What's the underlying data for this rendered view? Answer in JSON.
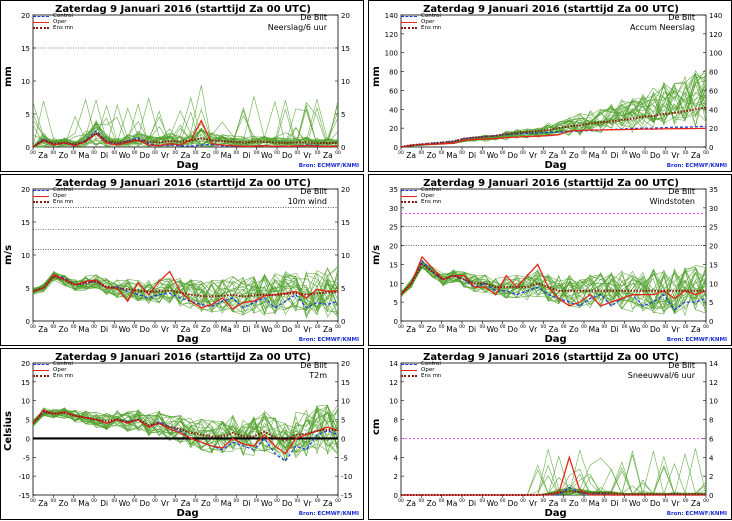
{
  "title": "Zaterdag   9 Januari   2016   (starttijd  Za 00 UTC)",
  "location": "De Bilt",
  "source": "Bron: ECMWF/KNMI",
  "xlabel": "Dag",
  "day_labels": [
    "Za",
    "Zo",
    "Ma",
    "Di",
    "Wo",
    "Do",
    "Vr",
    "Za",
    "Zo",
    "Ma",
    "Di",
    "Wo",
    "Do",
    "Vr",
    "Za"
  ],
  "legend": {
    "control": "Control",
    "oper": "Oper",
    "ensmn": "Ens mn"
  },
  "colors": {
    "members": "#4fa02a",
    "control": "#1f3fe0",
    "oper": "#e8231a",
    "ensmn": "#8b1a10",
    "frame": "#000000",
    "threshold_pink": "#ff33ff"
  },
  "chart_data": [
    {
      "id": "neerslag",
      "type": "line",
      "variable": "Neerslag/6 uur",
      "ylabel": "mm",
      "ylim": [
        0,
        20
      ],
      "yticks": [
        0,
        5,
        10,
        15,
        20
      ],
      "ref_lines": [
        15
      ],
      "ref_color": "black",
      "control": [
        0,
        1.2,
        0.4,
        0.6,
        0.3,
        1.0,
        2.5,
        0.8,
        0.4,
        0.9,
        1.4,
        0.5,
        0.2,
        0.3,
        0.2,
        0.1,
        0.3,
        0.4,
        0.2,
        0.1,
        0.1,
        0.1,
        0.2,
        0.1,
        0.1,
        0.1,
        0.3,
        0.2,
        0.1,
        0.1
      ],
      "oper": [
        0,
        1.0,
        0.3,
        0.6,
        0.2,
        0.8,
        2.0,
        0.6,
        0.3,
        0.7,
        1.0,
        0.3,
        0.2,
        0.5,
        0.3,
        1.0,
        4.0,
        0.5,
        0.3,
        0.2,
        0.1,
        0.1,
        0.2,
        0.1,
        0.1,
        0.1,
        0.2,
        0.1,
        0.1,
        0.1
      ],
      "ensmn": [
        0,
        1.0,
        0.5,
        0.7,
        0.4,
        0.9,
        2.1,
        0.9,
        0.6,
        0.9,
        1.1,
        0.8,
        0.7,
        0.9,
        0.8,
        1.0,
        1.3,
        1.0,
        0.9,
        0.8,
        0.7,
        0.8,
        0.8,
        0.7,
        0.6,
        0.7,
        0.7,
        0.6,
        0.6,
        0.6
      ]
    },
    {
      "id": "accum",
      "type": "line",
      "variable": "Accum Neerslag",
      "ylabel": "mm",
      "ylim": [
        0,
        140
      ],
      "yticks": [
        0,
        20,
        40,
        60,
        80,
        100,
        120,
        140
      ],
      "ref_lines": [],
      "ref_color": "black",
      "control": [
        0,
        2,
        3,
        4,
        5,
        6,
        9,
        10,
        11,
        12,
        13,
        14,
        14.5,
        15,
        15.5,
        16,
        16.5,
        17,
        17.5,
        18,
        18.5,
        19,
        19.5,
        20,
        20,
        20.5,
        21,
        21,
        21.5,
        22
      ],
      "oper": [
        0,
        2,
        2.5,
        3,
        3.5,
        4,
        7,
        8,
        8.5,
        9,
        10,
        10.5,
        11,
        11.5,
        12,
        13,
        17,
        17.5,
        18,
        18,
        18.3,
        18.5,
        18.7,
        19,
        19,
        19.2,
        19.4,
        19.5,
        19.6,
        19.7
      ],
      "ensmn": [
        0,
        2,
        3,
        4,
        5,
        6,
        9,
        10,
        11,
        12,
        14,
        15,
        16,
        17,
        18,
        20,
        22,
        23,
        25,
        26,
        27,
        29,
        30,
        32,
        33,
        35,
        36,
        38,
        40,
        42
      ]
    },
    {
      "id": "wind",
      "type": "line",
      "variable": "10m wind",
      "ylabel": "m/s",
      "ylim": [
        0,
        20
      ],
      "yticks": [
        0,
        5,
        10,
        15,
        20
      ],
      "ref_lines": [
        10.8,
        13.9,
        17.2
      ],
      "ref_color": "black",
      "control": [
        4.5,
        5,
        7,
        6.5,
        5.5,
        5.8,
        6,
        5,
        5.2,
        4.5,
        4,
        3.5,
        4,
        4.2,
        3.5,
        3,
        2.5,
        2.2,
        3,
        3.5,
        2,
        2.8,
        3.5,
        2,
        3,
        4,
        2,
        2.8,
        2.5,
        3
      ],
      "oper": [
        4.5,
        5,
        7,
        6.3,
        5.5,
        6,
        6.2,
        5,
        5,
        3,
        5.8,
        4,
        6,
        7.5,
        4.5,
        3,
        2,
        2.5,
        3.5,
        1.8,
        2.8,
        3,
        3.8,
        4,
        4.2,
        4.5,
        3.5,
        4.8,
        4.5,
        4.6
      ],
      "ensmn": [
        4.5,
        5,
        6.8,
        6.2,
        5.5,
        5.7,
        6,
        5.2,
        5,
        4.8,
        4.6,
        4.4,
        4.5,
        4.6,
        4.3,
        4,
        3.8,
        3.7,
        3.8,
        4,
        3.7,
        3.9,
        4,
        3.9,
        4.1,
        4.2,
        4,
        4.2,
        4.3,
        4.4
      ]
    },
    {
      "id": "windstoten",
      "type": "line",
      "variable": "Windstoten",
      "ylabel": "m/s",
      "ylim": [
        0,
        35
      ],
      "yticks": [
        0,
        5,
        10,
        15,
        20,
        25,
        30,
        35
      ],
      "ref_lines": [
        20,
        25
      ],
      "ref_color": "black",
      "pink_line": 28.5,
      "control": [
        7,
        10,
        16,
        13,
        11,
        12,
        11,
        9,
        10,
        8,
        8,
        7,
        8,
        9,
        7,
        6,
        5,
        4,
        6,
        7,
        4,
        6,
        7,
        4,
        5,
        7,
        3,
        5,
        5,
        6
      ],
      "oper": [
        7,
        10,
        17,
        14,
        11,
        12,
        12,
        9,
        9,
        7,
        12,
        9,
        12,
        15,
        9,
        6,
        4,
        5,
        7,
        4,
        5,
        6,
        7,
        7,
        7,
        8,
        6,
        8,
        7,
        8
      ],
      "ensmn": [
        7,
        10,
        15,
        13,
        11,
        12,
        11,
        10,
        10,
        9,
        9,
        9,
        9,
        10,
        9,
        8,
        8,
        8,
        8,
        8,
        8,
        8,
        8,
        8,
        8,
        8,
        8,
        8,
        8,
        8
      ]
    },
    {
      "id": "t2m",
      "type": "line",
      "variable": "T2m",
      "ylabel": "Celsius",
      "ylim": [
        -15,
        20
      ],
      "yticks": [
        -15,
        -10,
        -5,
        0,
        5,
        10,
        15,
        20
      ],
      "ref_lines": [],
      "ref_color": "black",
      "zero_line": true,
      "control": [
        4,
        7,
        6.5,
        7,
        6,
        5.5,
        5,
        4,
        5,
        4.5,
        5,
        3,
        4.5,
        3,
        2,
        0,
        -1,
        -2,
        -3,
        -1,
        -2,
        -3,
        0,
        -4,
        -6,
        -2,
        -3,
        1,
        2,
        1
      ],
      "oper": [
        4,
        7.5,
        6.5,
        7,
        6,
        5.5,
        5,
        4,
        5,
        4,
        5,
        3,
        4,
        2.5,
        1.5,
        0,
        -1,
        -2,
        -2.5,
        0,
        -1.5,
        -2,
        1,
        -2,
        -4,
        0,
        1,
        2,
        3,
        2
      ],
      "ensmn": [
        4,
        7,
        6.5,
        6.8,
        6,
        5.5,
        5,
        4.5,
        5,
        4.3,
        5,
        3.5,
        4,
        3,
        2.5,
        1.5,
        1,
        0.5,
        0.5,
        1.5,
        0.5,
        0.5,
        1.8,
        0.3,
        -0.5,
        1,
        1.2,
        2,
        2.3,
        2.2
      ]
    },
    {
      "id": "sneeuw",
      "type": "line",
      "variable": "Sneeuwval/6 uur",
      "ylabel": "cm",
      "ylim": [
        0,
        14
      ],
      "yticks": [
        0,
        2,
        4,
        6,
        8,
        10,
        12,
        14
      ],
      "ref_lines": [],
      "ref_color": "black",
      "pink_line": 6,
      "control": [
        0,
        0,
        0,
        0,
        0,
        0,
        0,
        0,
        0,
        0,
        0,
        0,
        0,
        0,
        0,
        0,
        0.8,
        0.3,
        0,
        0.2,
        0,
        0,
        0,
        0,
        0,
        0,
        0.1,
        0,
        0,
        0
      ],
      "oper": [
        0,
        0,
        0,
        0,
        0,
        0,
        0,
        0,
        0,
        0,
        0,
        0,
        0,
        0,
        0,
        0.2,
        4.0,
        0.5,
        0,
        0,
        0,
        0,
        0,
        0,
        0,
        0,
        0,
        0,
        0,
        0
      ],
      "ensmn": [
        0,
        0,
        0,
        0,
        0,
        0,
        0,
        0,
        0,
        0,
        0,
        0,
        0,
        0,
        0.1,
        0.3,
        0.4,
        0.3,
        0.2,
        0.2,
        0.2,
        0.1,
        0.1,
        0.1,
        0.1,
        0.1,
        0.1,
        0.1,
        0.1,
        0.1
      ]
    }
  ]
}
